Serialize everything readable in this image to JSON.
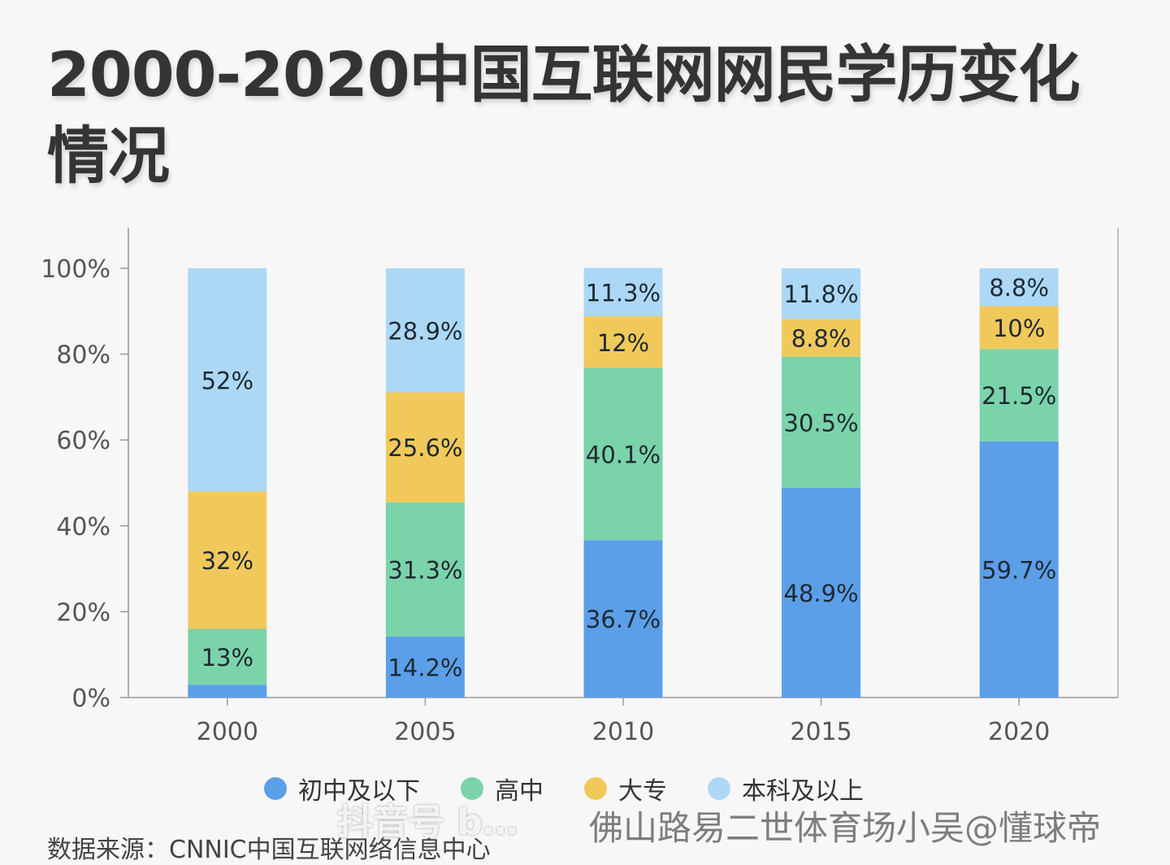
{
  "title": "2000-2020中国互联网网民学历变化情况",
  "source": "数据来源：CNNIC中国互联网络信息中心",
  "watermarks": {
    "platform": "抖音号 b…",
    "credit": "佛山路易二世体育场小吴@懂球帝"
  },
  "chart_data": {
    "type": "bar",
    "stacked": true,
    "title": "2000-2020中国互联网网民学历变化情况",
    "xlabel": "",
    "ylabel": "",
    "ylim": [
      0,
      100
    ],
    "yticks": [
      "0%",
      "20%",
      "40%",
      "60%",
      "80%",
      "100%"
    ],
    "grid": false,
    "legend_position": "bottom",
    "categories": [
      "2000",
      "2005",
      "2010",
      "2015",
      "2020"
    ],
    "series": [
      {
        "name": "初中及以下",
        "color": "#5b9fe8",
        "values": [
          3,
          14.2,
          36.7,
          48.9,
          59.7
        ],
        "labels": [
          "",
          "14.2%",
          "36.7%",
          "48.9%",
          "59.7%"
        ]
      },
      {
        "name": "高中",
        "color": "#7bd3aa",
        "values": [
          13,
          31.3,
          40.1,
          30.5,
          21.5
        ],
        "labels": [
          "13%",
          "31.3%",
          "40.1%",
          "30.5%",
          "21.5%"
        ]
      },
      {
        "name": "大专",
        "color": "#f1c95b",
        "values": [
          32,
          25.6,
          12,
          8.8,
          10
        ],
        "labels": [
          "32%",
          "25.6%",
          "12%",
          "8.8%",
          "10%"
        ]
      },
      {
        "name": "本科及以上",
        "color": "#acd8f6",
        "values": [
          52,
          28.9,
          11.3,
          11.8,
          8.8
        ],
        "labels": [
          "52%",
          "28.9%",
          "11.3%",
          "11.8%",
          "8.8%"
        ]
      }
    ]
  }
}
